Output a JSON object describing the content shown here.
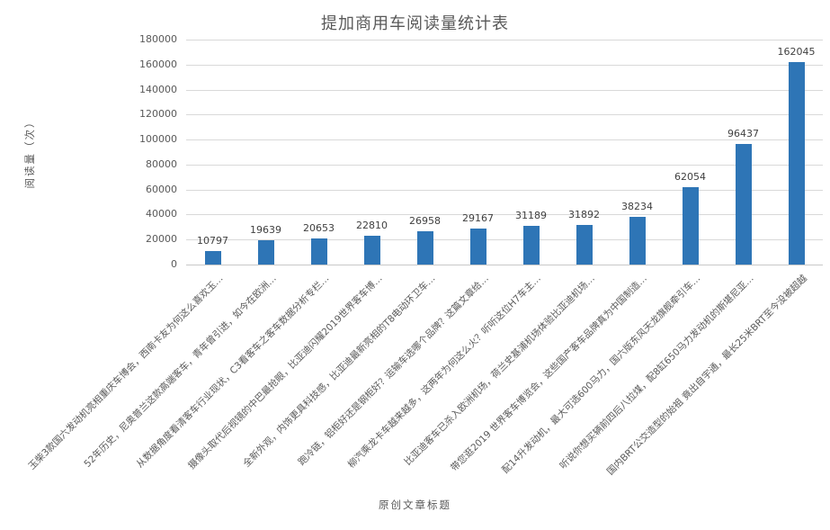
{
  "chart_data": {
    "type": "bar",
    "title": "提加商用车阅读量统计表",
    "xlabel": "原创文章标题",
    "ylabel": "阅读量（次）",
    "ylim": [
      0,
      180000
    ],
    "ytick_step": 20000,
    "grid": true,
    "legend": false,
    "bar_color": "#2E75B6",
    "categories": [
      "玉柴3款国六发动机亮相重庆车博会，西南卡友为何这么喜欢玉…",
      "52年历史，尼奥普兰这款高端客车，青年曾引进，如今在欧洲…",
      "从数据角度看清客车行业现状，C3看客车之客车数据分析专栏…",
      "摄像头取代后视镜的中巴最抢眼，比亚迪闪耀2019世界客车博…",
      "全新外观，内饰更具科技感，比亚迪最新亮相的T8电动环卫车…",
      "跑冷链，铝柜好还是钢柜好？运输车选哪个品牌？这篇文章给…",
      "柳汽乘龙卡车越来越多，这两年为何这么火？听听这位H7车主…",
      "比亚迪客车已杀入欧洲机场，荷兰史基浦机场体验比亚迪机场…",
      "带您逛2019 世界客车博览会，这些国产客车品牌真为中国制造…",
      "配14升发动机，最大可选600马力，国六版东风天龙旗舰牵引车…",
      "听说你想买辆前四后八拉煤，配8缸650马力发动机的斯堪尼亚…",
      "国内BRT公交造型的始祖 竟出自宇通，最长25米BRT至今没被超越"
    ],
    "values": [
      10797,
      19639,
      20653,
      22810,
      26958,
      29167,
      31189,
      31892,
      38234,
      62054,
      96437,
      162045
    ]
  },
  "colors": {
    "background": "#FFFFFF",
    "bar": "#2E75B6",
    "gridline": "#D9D9D9",
    "axis_line": "#C9C9C9",
    "axis_text": "#595959",
    "data_label_text": "#404040"
  }
}
